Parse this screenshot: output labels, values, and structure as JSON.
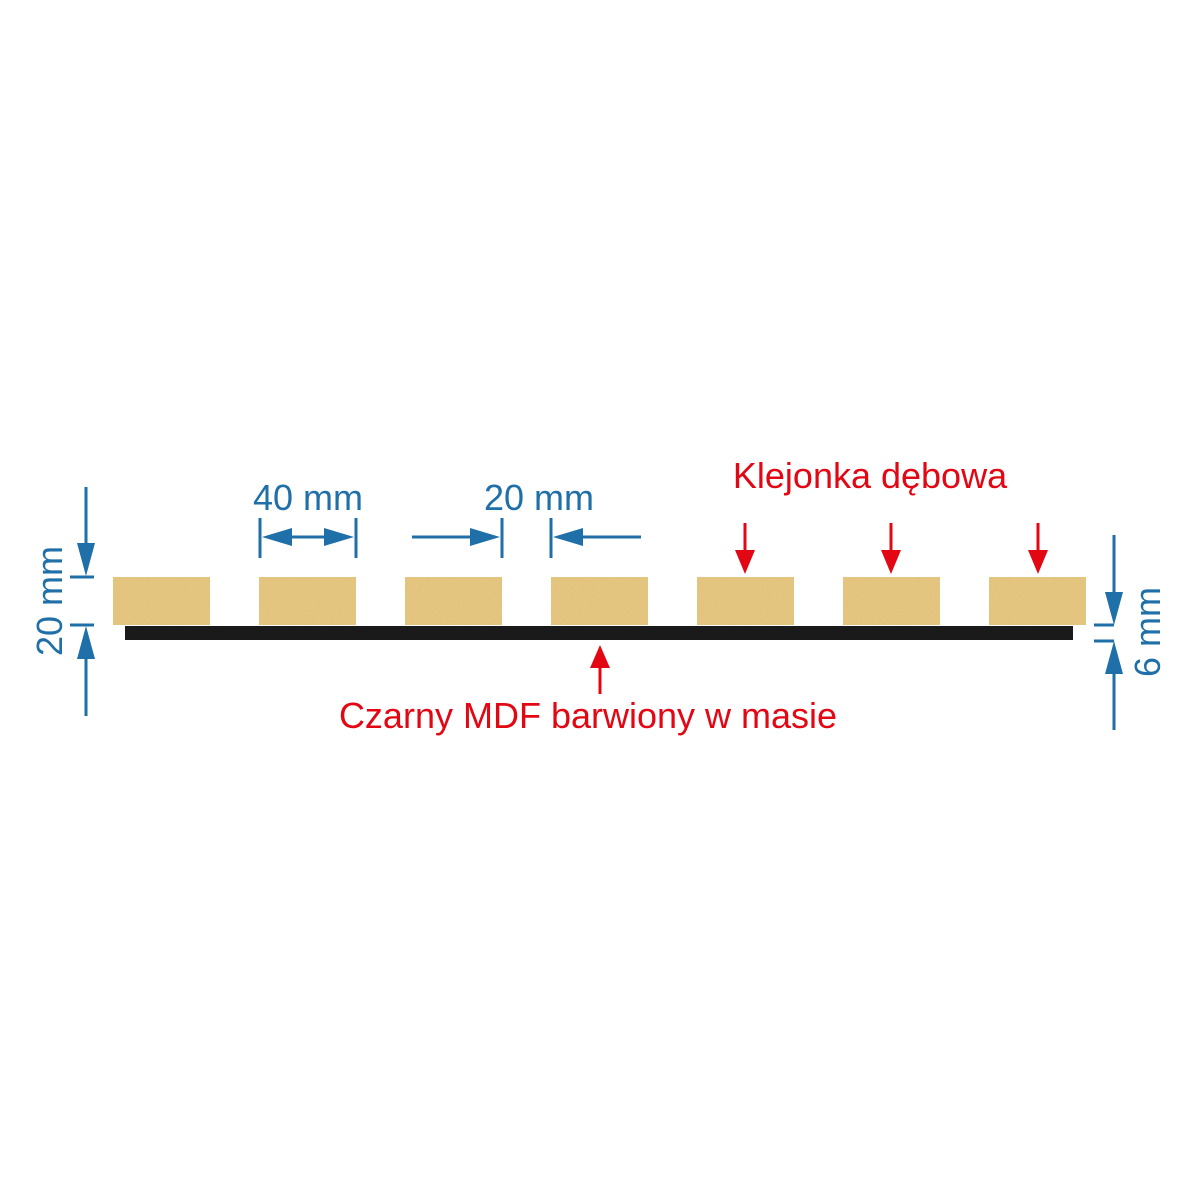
{
  "labels": {
    "width_slat": "40 mm",
    "gap": "20 mm",
    "slat_height": "20 mm",
    "board_thickness": "6 mm",
    "oak_label": "Klejonka dębowa",
    "mdf_label": "Czarny MDF barwiony w masie"
  },
  "slat_count": 7,
  "colors": {
    "dimension": "#1f6fa8",
    "annotation": "#e30613",
    "oak": "#e3c27a",
    "board": "#1a1a1a"
  }
}
